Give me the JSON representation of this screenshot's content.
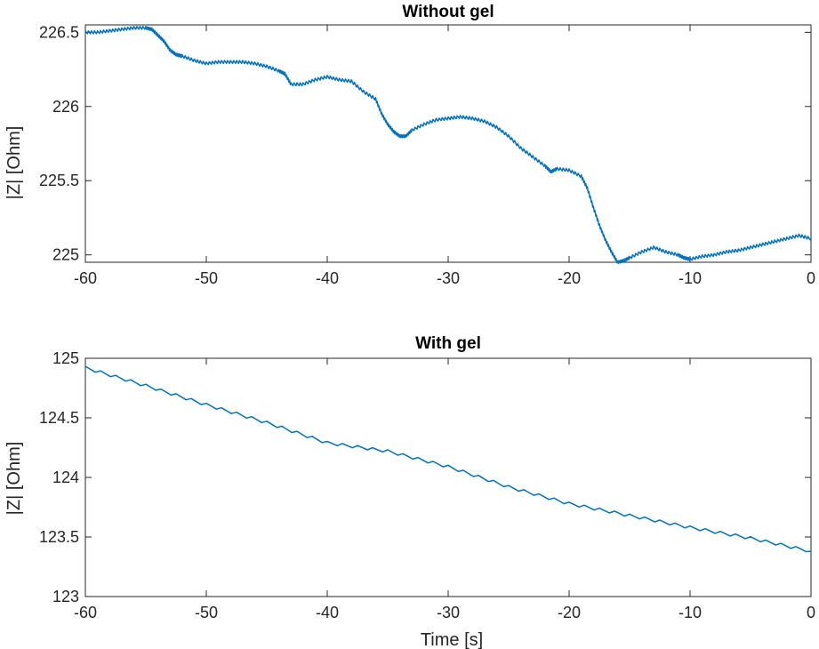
{
  "line_color": "#0072BD",
  "chart_data": [
    {
      "type": "line",
      "title": "Without gel",
      "xlabel": "",
      "ylabel": "|Z| [Ohm]",
      "xlim": [
        -60,
        0
      ],
      "ylim": [
        224.95,
        226.55
      ],
      "xticks": [
        -60,
        -50,
        -40,
        -30,
        -20,
        -10,
        0
      ],
      "xtick_labels": [
        "-60",
        "-50",
        "-40",
        "-30",
        "-20",
        "-10",
        "0"
      ],
      "yticks": [
        225,
        225.5,
        226,
        226.5
      ],
      "ytick_labels": [
        "225",
        "225.5",
        "226",
        "226.5"
      ],
      "grid": false,
      "series": [
        {
          "x": [
            -60,
            -59,
            -58,
            -57,
            -56,
            -55,
            -54.5,
            -54,
            -53.5,
            -53,
            -52.5,
            -52,
            -51,
            -50,
            -49,
            -48,
            -47,
            -46,
            -45,
            -44,
            -43.5,
            -43,
            -42,
            -41,
            -40,
            -39,
            -38,
            -37,
            -36,
            -35.5,
            -35,
            -34.5,
            -34,
            -33.5,
            -33,
            -32,
            -31,
            -30,
            -29,
            -28,
            -27,
            -26,
            -25,
            -24,
            -23,
            -22,
            -21.5,
            -21,
            -20,
            -19,
            -18.5,
            -18,
            -17.5,
            -17,
            -16.5,
            -16,
            -15.5,
            -15,
            -14,
            -13,
            -12,
            -11,
            -10.5,
            -10,
            -9,
            -8,
            -7,
            -6,
            -5,
            -4,
            -3,
            -2,
            -1,
            0
          ],
          "y": [
            226.5,
            226.5,
            226.51,
            226.52,
            226.53,
            226.53,
            226.52,
            226.48,
            226.44,
            226.38,
            226.35,
            226.34,
            226.31,
            226.29,
            226.3,
            226.3,
            226.3,
            226.29,
            226.27,
            226.24,
            226.22,
            226.15,
            226.15,
            226.18,
            226.2,
            226.18,
            226.17,
            226.1,
            226.05,
            225.95,
            225.88,
            225.83,
            225.8,
            225.8,
            225.84,
            225.88,
            225.91,
            225.92,
            225.93,
            225.92,
            225.9,
            225.86,
            225.8,
            225.72,
            225.66,
            225.6,
            225.56,
            225.58,
            225.57,
            225.53,
            225.45,
            225.32,
            225.2,
            225.1,
            225.02,
            224.95,
            224.96,
            224.98,
            225.02,
            225.05,
            225.02,
            225.0,
            224.98,
            224.97,
            224.99,
            225.0,
            225.02,
            225.03,
            225.05,
            225.07,
            225.09,
            225.11,
            225.13,
            225.11
          ]
        }
      ]
    },
    {
      "type": "line",
      "title": "With gel",
      "xlabel": "Time [s]",
      "ylabel": "|Z| [Ohm]",
      "xlim": [
        -60,
        0
      ],
      "ylim": [
        123,
        125
      ],
      "xticks": [
        -60,
        -50,
        -40,
        -30,
        -20,
        -10,
        0
      ],
      "xtick_labels": [
        "-60",
        "-50",
        "-40",
        "-30",
        "-20",
        "-10",
        "0"
      ],
      "yticks": [
        123,
        123.5,
        124,
        124.5,
        125
      ],
      "ytick_labels": [
        "123",
        "123.5",
        "124",
        "124.5",
        "125"
      ],
      "grid": false,
      "series": [
        {
          "x": [
            -60,
            -55,
            -50,
            -45,
            -40,
            -35,
            -30,
            -25,
            -20,
            -15,
            -10,
            -5,
            0
          ],
          "y": [
            124.92,
            124.77,
            124.61,
            124.46,
            124.29,
            124.22,
            124.09,
            123.92,
            123.78,
            123.68,
            123.58,
            123.49,
            123.38
          ]
        }
      ]
    }
  ]
}
